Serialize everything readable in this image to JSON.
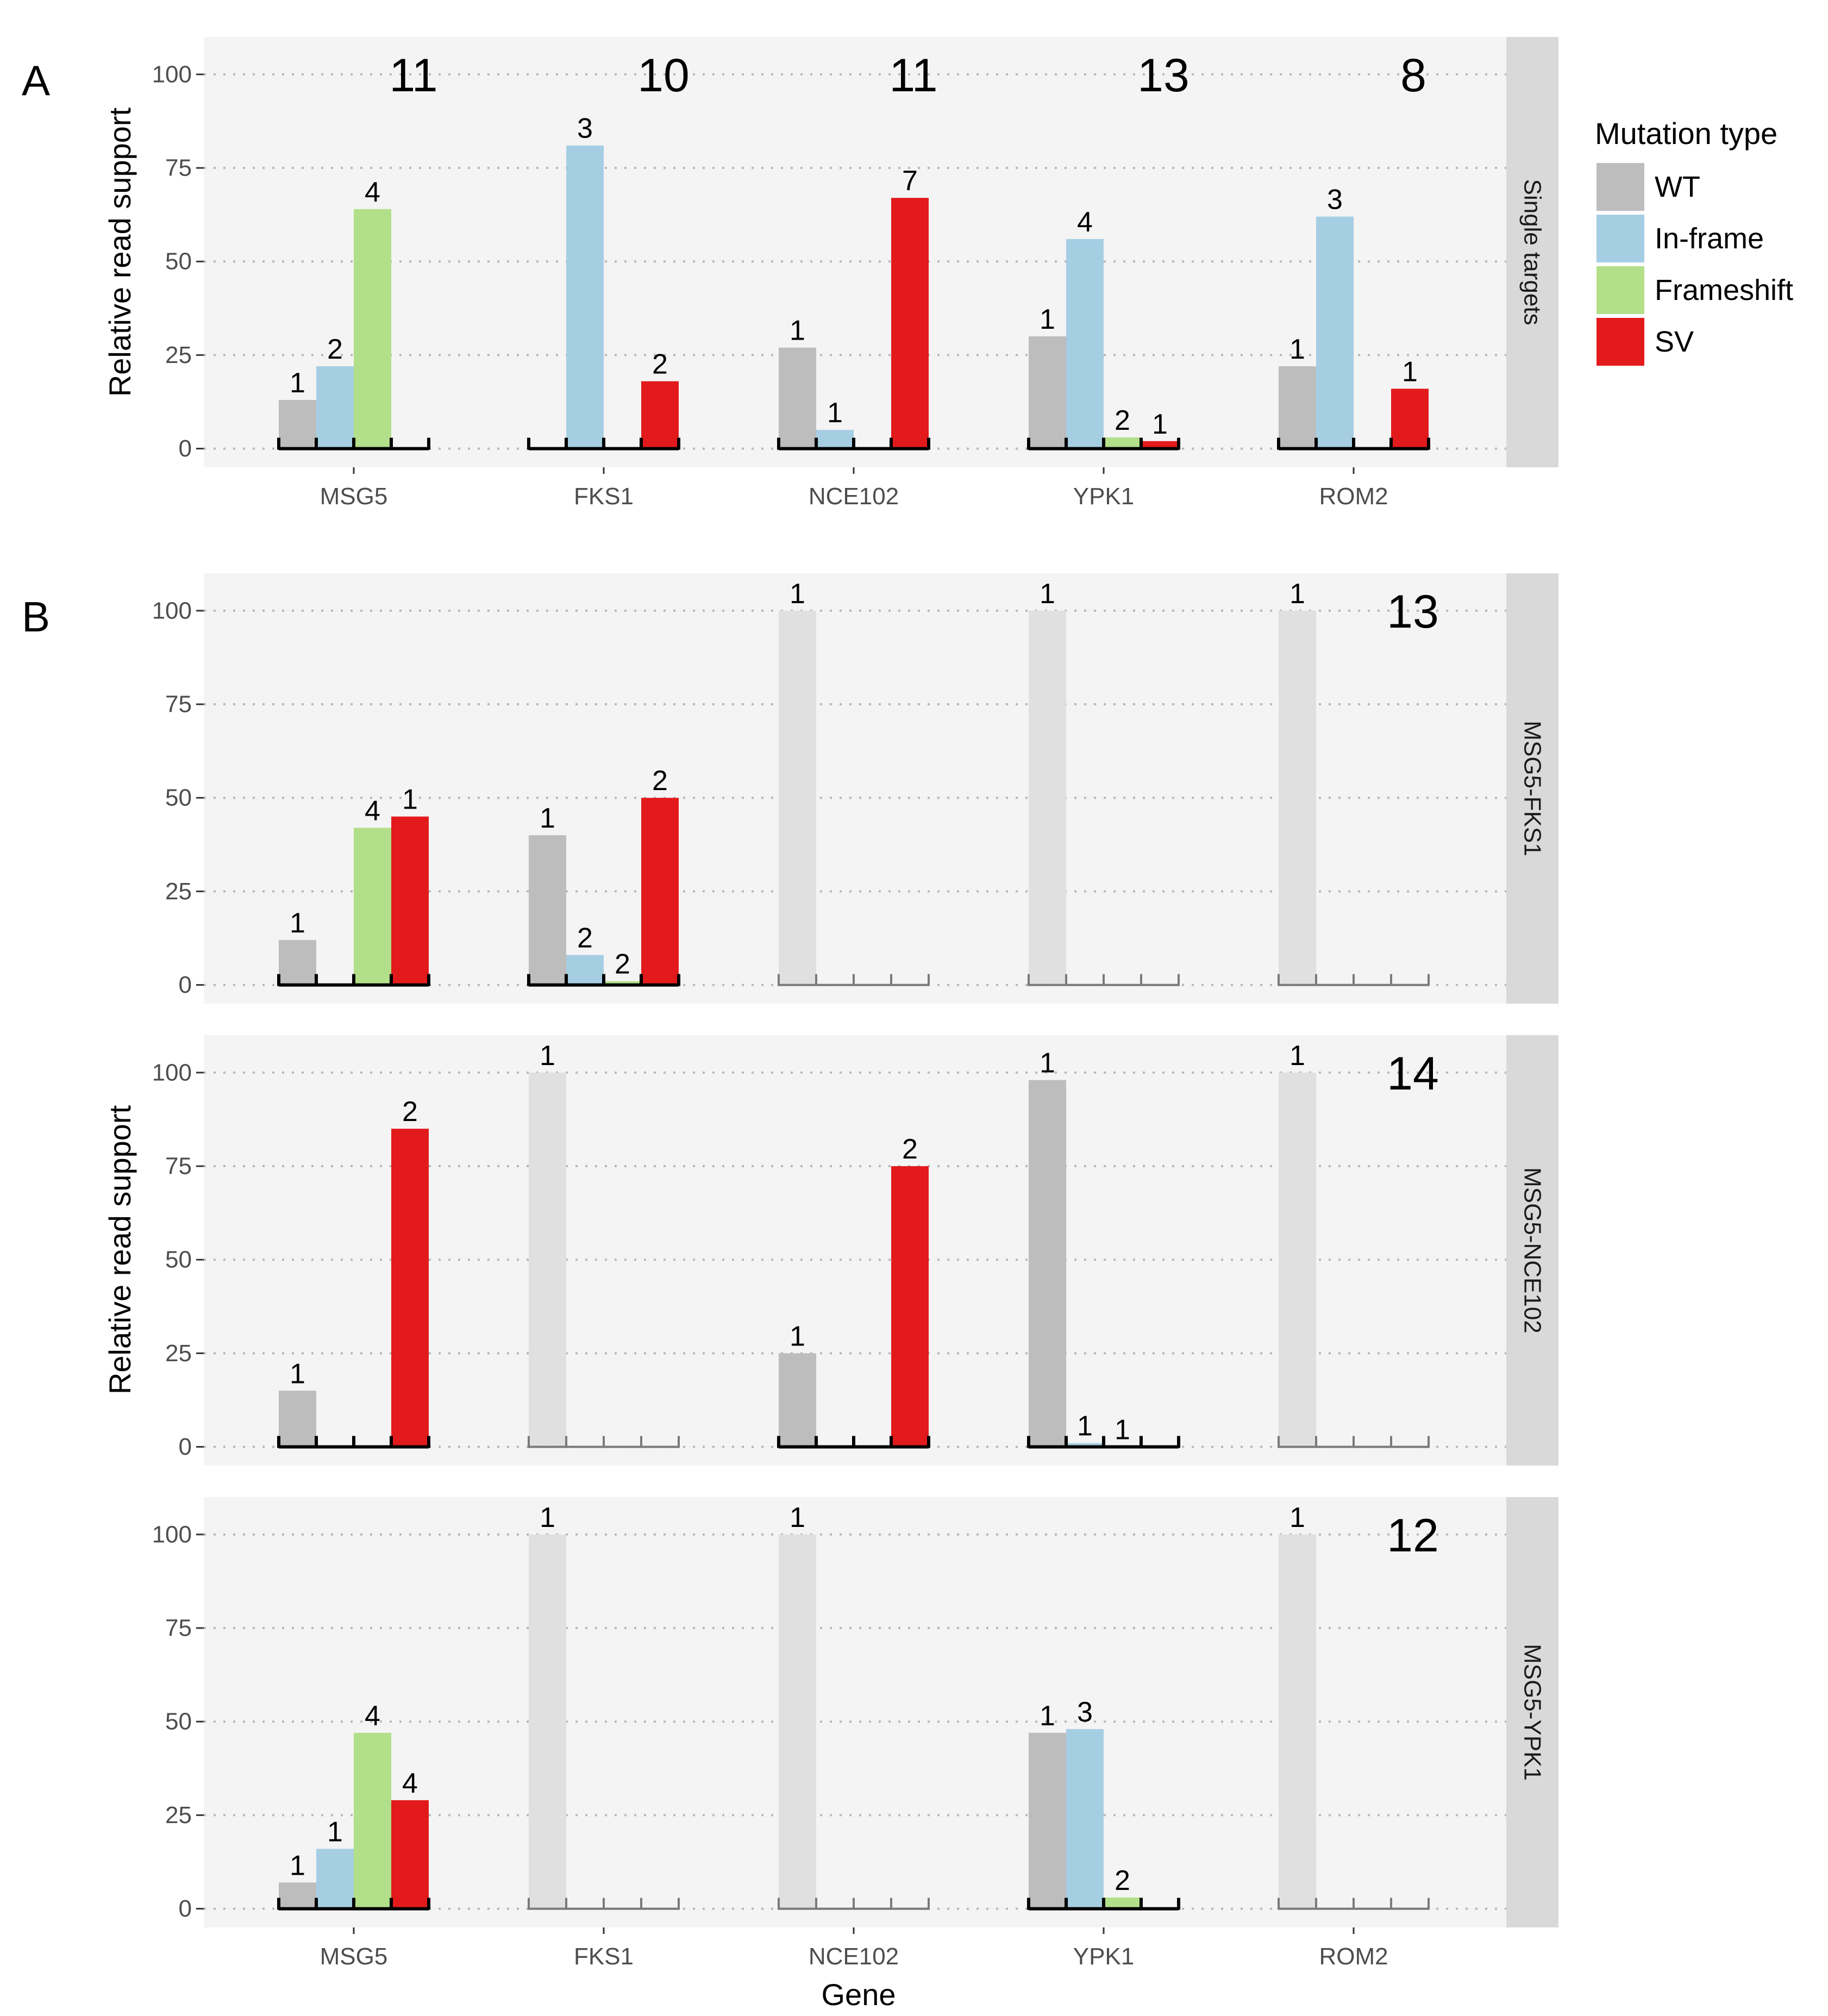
{
  "chart_data": {
    "type": "bar",
    "x_title": "Gene",
    "y_title": "Relative read support",
    "yticks": [
      0,
      25,
      50,
      75,
      100
    ],
    "ylim": [
      -5,
      110
    ],
    "genes": [
      "MSG5",
      "FKS1",
      "NCE102",
      "YPK1",
      "ROM2"
    ],
    "legend": {
      "title": "Mutation type",
      "items": [
        {
          "key": "WT",
          "label": "WT",
          "color": "#bdbdbd"
        },
        {
          "key": "IF",
          "label": "In-frame",
          "color": "#a6cee3"
        },
        {
          "key": "FS",
          "label": "Frameshift",
          "color": "#b2df8a"
        },
        {
          "key": "SV",
          "label": "SV",
          "color": "#e31a1c"
        }
      ]
    },
    "untargeted_color": "#e0e0e0",
    "panel_letters": [
      "A",
      "B"
    ],
    "facets": [
      {
        "strip": "Single targets",
        "count": "11",
        "gene_counts": [
          "11",
          "10",
          "11",
          "13",
          "8"
        ],
        "bars": [
          {
            "gene": "MSG5",
            "type": "WT",
            "value": 13,
            "label": "1"
          },
          {
            "gene": "MSG5",
            "type": "IF",
            "value": 22,
            "label": "2"
          },
          {
            "gene": "MSG5",
            "type": "FS",
            "value": 64,
            "label": "4"
          },
          {
            "gene": "FKS1",
            "type": "IF",
            "value": 81,
            "label": "3"
          },
          {
            "gene": "FKS1",
            "type": "SV",
            "value": 18,
            "label": "2"
          },
          {
            "gene": "NCE102",
            "type": "WT",
            "value": 27,
            "label": "1"
          },
          {
            "gene": "NCE102",
            "type": "IF",
            "value": 5,
            "label": "1"
          },
          {
            "gene": "NCE102",
            "type": "SV",
            "value": 67,
            "label": "7"
          },
          {
            "gene": "YPK1",
            "type": "WT",
            "value": 30,
            "label": "1"
          },
          {
            "gene": "YPK1",
            "type": "IF",
            "value": 56,
            "label": "4"
          },
          {
            "gene": "YPK1",
            "type": "FS",
            "value": 3,
            "label": "2"
          },
          {
            "gene": "YPK1",
            "type": "SV",
            "value": 2,
            "label": "1"
          },
          {
            "gene": "ROM2",
            "type": "WT",
            "value": 22,
            "label": "1"
          },
          {
            "gene": "ROM2",
            "type": "IF",
            "value": 62,
            "label": "3"
          },
          {
            "gene": "ROM2",
            "type": "SV",
            "value": 16,
            "label": "1"
          }
        ],
        "untargeted": []
      },
      {
        "strip": "MSG5-FKS1",
        "count": "13",
        "bars": [
          {
            "gene": "MSG5",
            "type": "WT",
            "value": 12,
            "label": "1"
          },
          {
            "gene": "MSG5",
            "type": "FS",
            "value": 42,
            "label": "4"
          },
          {
            "gene": "MSG5",
            "type": "SV",
            "value": 45,
            "label": "1"
          },
          {
            "gene": "FKS1",
            "type": "WT",
            "value": 40,
            "label": "1"
          },
          {
            "gene": "FKS1",
            "type": "IF",
            "value": 8,
            "label": "2"
          },
          {
            "gene": "FKS1",
            "type": "FS",
            "value": 1,
            "label": "2"
          },
          {
            "gene": "FKS1",
            "type": "SV",
            "value": 50,
            "label": "2"
          }
        ],
        "untargeted": [
          {
            "gene": "NCE102",
            "label": "1"
          },
          {
            "gene": "YPK1",
            "label": "1"
          },
          {
            "gene": "ROM2",
            "label": "1"
          }
        ]
      },
      {
        "strip": "MSG5-NCE102",
        "count": "14",
        "bars": [
          {
            "gene": "MSG5",
            "type": "WT",
            "value": 15,
            "label": "1"
          },
          {
            "gene": "MSG5",
            "type": "SV",
            "value": 85,
            "label": "2"
          },
          {
            "gene": "NCE102",
            "type": "WT",
            "value": 25,
            "label": "1"
          },
          {
            "gene": "NCE102",
            "type": "SV",
            "value": 75,
            "label": "2"
          },
          {
            "gene": "YPK1",
            "type": "WT",
            "value": 98,
            "label": "1"
          },
          {
            "gene": "YPK1",
            "type": "IF",
            "value": 1,
            "label": "1"
          },
          {
            "gene": "YPK1",
            "type": "FS",
            "value": 0,
            "label": "1"
          }
        ],
        "untargeted": [
          {
            "gene": "FKS1",
            "label": "1"
          },
          {
            "gene": "ROM2",
            "label": "1"
          }
        ]
      },
      {
        "strip": "MSG5-YPK1",
        "count": "12",
        "bars": [
          {
            "gene": "MSG5",
            "type": "WT",
            "value": 7,
            "label": "1"
          },
          {
            "gene": "MSG5",
            "type": "IF",
            "value": 16,
            "label": "1"
          },
          {
            "gene": "MSG5",
            "type": "FS",
            "value": 47,
            "label": "4"
          },
          {
            "gene": "MSG5",
            "type": "SV",
            "value": 29,
            "label": "4"
          },
          {
            "gene": "YPK1",
            "type": "WT",
            "value": 47,
            "label": "1"
          },
          {
            "gene": "YPK1",
            "type": "IF",
            "value": 48,
            "label": "3"
          },
          {
            "gene": "YPK1",
            "type": "FS",
            "value": 3,
            "label": "2"
          }
        ],
        "untargeted": [
          {
            "gene": "FKS1",
            "label": "1"
          },
          {
            "gene": "NCE102",
            "label": "1"
          },
          {
            "gene": "ROM2",
            "label": "1"
          }
        ]
      }
    ]
  }
}
